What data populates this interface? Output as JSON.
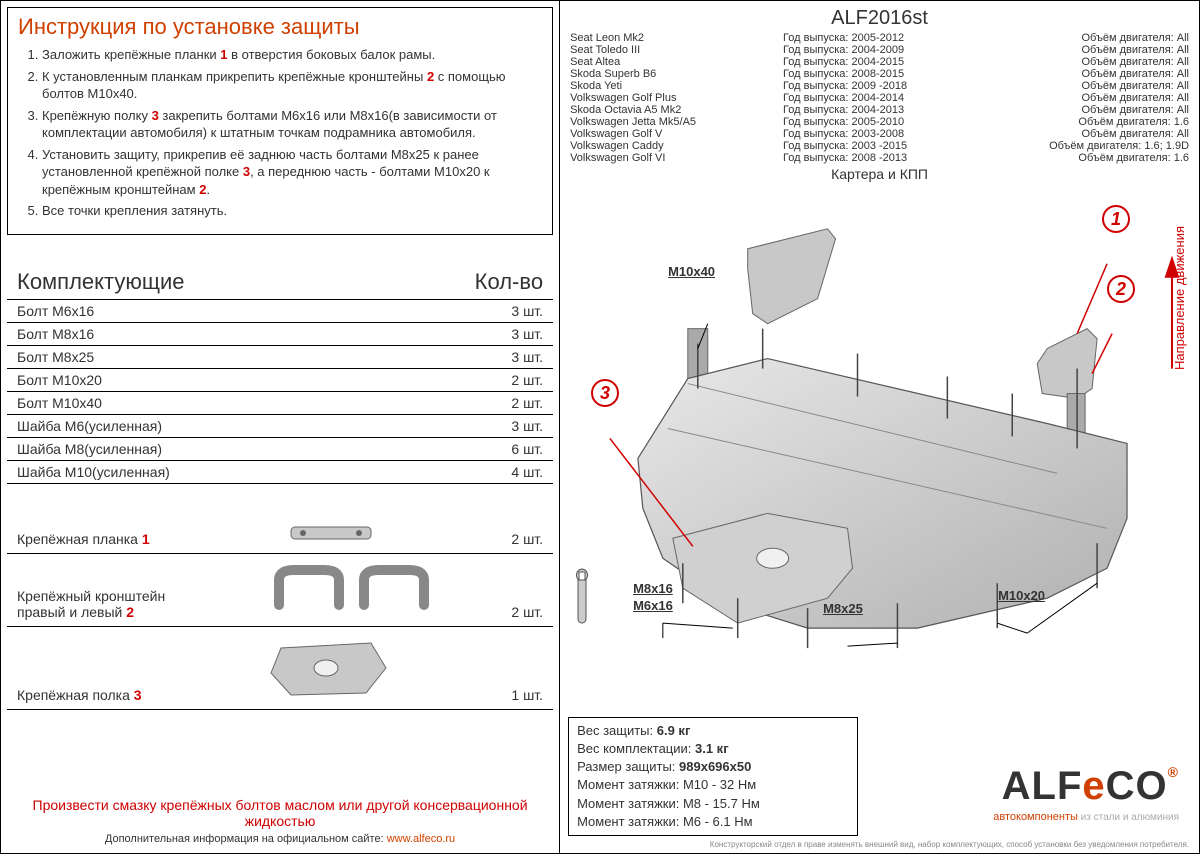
{
  "instructions": {
    "title": "Инструкция по установке защиты",
    "items": [
      {
        "pre": "Заложить крепёжные планки ",
        "ref": "1",
        "post": " в отверстия боковых балок рамы."
      },
      {
        "pre": "К установленным планкам прикрепить крепёжные кронштейны ",
        "ref": "2",
        "post": " с помощью болтов М10x40."
      },
      {
        "pre": "Крепёжную полку ",
        "ref": "3",
        "post": " закрепить болтами М6x16 или М8x16(в зависимости от комплектации автомобиля) к штатным точкам подрамника автомобиля."
      },
      {
        "pre": "Установить защиту, прикрепив её заднюю часть болтами М8x25 к ранее установленной крепёжной полке ",
        "ref": "3",
        "post": ", а переднюю часть - болтами М10x20 к крепёжным кронштейнам ",
        "ref2": "2",
        "post2": "."
      },
      {
        "pre": "Все точки крепления затянуть.",
        "ref": "",
        "post": ""
      }
    ]
  },
  "components": {
    "title_left": "Комплектующие",
    "title_right": "Кол-во",
    "rows": [
      {
        "name": "Болт М6x16",
        "qty": "3 шт."
      },
      {
        "name": "Болт М8x16",
        "qty": "3 шт."
      },
      {
        "name": "Болт М8x25",
        "qty": "3 шт."
      },
      {
        "name": "Болт М10x20",
        "qty": "2 шт."
      },
      {
        "name": "Болт М10x40",
        "qty": "2 шт."
      },
      {
        "name": "Шайба М6(усиленная)",
        "qty": "3 шт."
      },
      {
        "name": "Шайба М8(усиленная)",
        "qty": "6 шт."
      },
      {
        "name": "Шайба М10(усиленная)",
        "qty": "4 шт."
      }
    ],
    "img_rows": [
      {
        "name": "Крепёжная планка",
        "ref": "1",
        "qty": "2 шт.",
        "shape": "bar"
      },
      {
        "name": "Крепёжный кронштейн правый и левый",
        "ref": "2",
        "qty": "2 шт.",
        "shape": "bracket"
      },
      {
        "name": "Крепёжная полка",
        "ref": "3",
        "qty": "1 шт.",
        "shape": "shelf"
      }
    ]
  },
  "bottom_note": "Произвести смазку крепёжных болтов маслом или другой консервационной жидкостью",
  "bottom_url_label": "Дополнительная информация на официальном сайте:",
  "bottom_url": "www.alfeco.ru",
  "product_code": "ALF2016st",
  "vehicles": [
    {
      "model": "Seat Leon Mk2",
      "years": "2005-2012",
      "engine": "All"
    },
    {
      "model": "Seat Toledo III",
      "years": "2004-2009",
      "engine": "All"
    },
    {
      "model": "Seat Altea",
      "years": "2004-2015",
      "engine": "All"
    },
    {
      "model": "Skoda Superb B6",
      "years": "2008-2015",
      "engine": "All"
    },
    {
      "model": "Skoda Yeti",
      "years": "2009 -2018",
      "engine": "All"
    },
    {
      "model": "Volkswagen Golf Plus",
      "years": "2004-2014",
      "engine": "All"
    },
    {
      "model": "Skoda Octavia A5 Mk2",
      "years": "2004-2013",
      "engine": "All"
    },
    {
      "model": "Volkswagen Jetta Mk5/A5",
      "years": "2005-2010",
      "engine": "1.6"
    },
    {
      "model": "Volkswagen Golf V",
      "years": "2003-2008",
      "engine": "All"
    },
    {
      "model": "Volkswagen Caddy",
      "years": "2003 -2015",
      "engine": "1.6; 1.9D"
    },
    {
      "model": "Volkswagen Golf VI",
      "years": "2008 -2013",
      "engine": "1.6"
    }
  ],
  "year_label": "Год выпуска:",
  "engine_label": "Объём двигателя:",
  "protects": "Картера и КПП",
  "direction": "Направление движения",
  "bolt_labels": {
    "m10x40": "M10x40",
    "m8x16": "M8x16",
    "m6x16": "M6x16",
    "m8x25": "M8x25",
    "m10x20": "M10x20"
  },
  "callouts": {
    "c1": "1",
    "c2": "2",
    "c3": "3"
  },
  "specs": [
    {
      "label": "Вес защиты:",
      "value": "6.9 кг",
      "bold": true
    },
    {
      "label": "Вес комплектации:",
      "value": "3.1 кг",
      "bold": true
    },
    {
      "label": "Размер защиты:",
      "value": "989x696x50",
      "bold": true
    },
    {
      "label": "Момент затяжки:",
      "value": "M10 - 32 Нм",
      "bold": false
    },
    {
      "label": "Момент затяжки:",
      "value": "M8 - 15.7 Нм",
      "bold": false
    },
    {
      "label": "Момент затяжки:",
      "value": "M6 - 6.1 Нм",
      "bold": false
    }
  ],
  "logo": {
    "main1": "ALF",
    "main2": "e",
    "main3": "CO",
    "sub": "автокомпоненты",
    "sub2": " из стали и алюминия"
  },
  "disclaimer": "Конструкторский отдел в праве изменять внешний вид, набор комплектующих, способ установки без уведомления потребителя.",
  "colors": {
    "accent": "#d04000",
    "red": "#d00000",
    "line": "#000000",
    "metal_light": "#d8d8d8",
    "metal_dark": "#a8a8a8"
  }
}
